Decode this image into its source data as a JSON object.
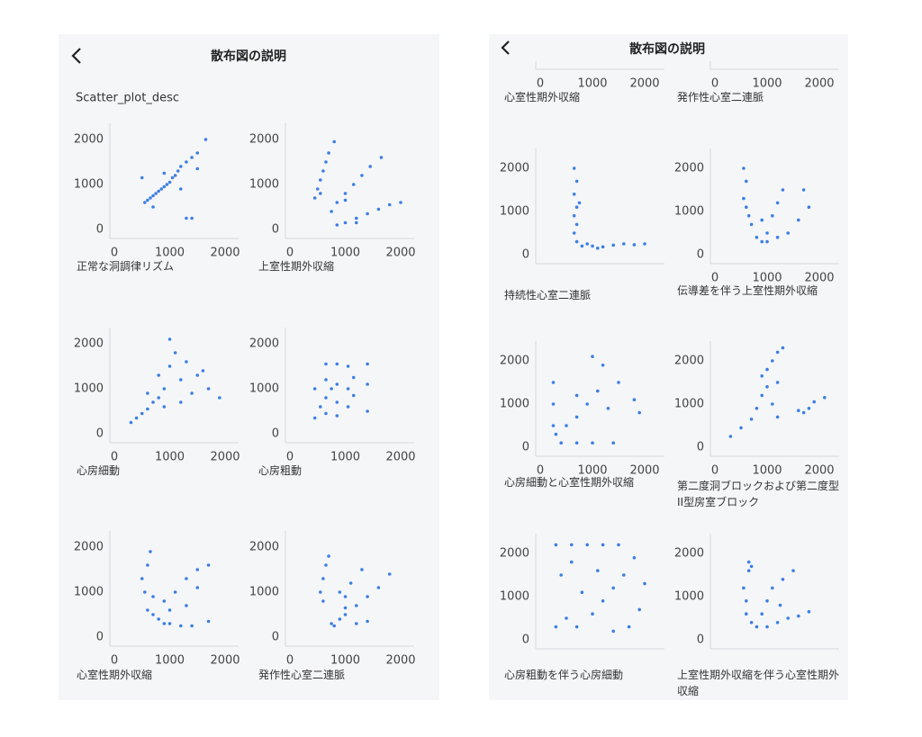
{
  "color": "#3d7fe3",
  "screens": [
    {
      "title": "散布図の説明",
      "subtitle": "Scatter_plot_desc",
      "plots": [
        {
          "type": "scatter",
          "label": "正常な洞調律リズム",
          "xticks": [
            0,
            1000,
            2000
          ],
          "yticks": [
            0,
            1000,
            2000
          ],
          "x": [
            550,
            600,
            650,
            700,
            750,
            800,
            850,
            900,
            950,
            1000,
            1050,
            1100,
            1150,
            1200,
            1300,
            1400,
            1500,
            1650,
            1300,
            1400,
            500,
            900,
            1200,
            1500,
            700
          ],
          "y": [
            600,
            650,
            700,
            750,
            800,
            850,
            900,
            950,
            1000,
            1050,
            1150,
            1200,
            1300,
            1400,
            1500,
            1600,
            1700,
            2000,
            250,
            250,
            1150,
            1250,
            900,
            1350,
            500
          ]
        },
        {
          "type": "scatter",
          "label": "上室性期外収縮",
          "xticks": [
            0,
            1000,
            2000
          ],
          "yticks": [
            0,
            1000,
            2000
          ],
          "x": [
            450,
            500,
            550,
            600,
            650,
            700,
            800,
            550,
            750,
            850,
            1000,
            1150,
            1300,
            1450,
            1650,
            1000,
            850,
            1000,
            1200,
            1400,
            1600,
            1800,
            2000,
            1200
          ],
          "y": [
            700,
            900,
            1100,
            1300,
            1500,
            1700,
            1950,
            800,
            400,
            600,
            800,
            1000,
            1200,
            1400,
            1600,
            650,
            100,
            150,
            250,
            350,
            450,
            550,
            600,
            150
          ]
        },
        {
          "type": "scatter",
          "label": "心房細動",
          "xticks": [
            0,
            1000,
            2000
          ],
          "yticks": [
            0,
            1000,
            2000
          ],
          "x": [
            300,
            400,
            500,
            600,
            700,
            800,
            900,
            1000,
            1100,
            1300,
            1500,
            1700,
            1900,
            1200,
            800,
            1000,
            1400,
            1600,
            900,
            1200,
            600
          ],
          "y": [
            250,
            350,
            450,
            550,
            700,
            800,
            1000,
            2100,
            1800,
            1600,
            1300,
            1000,
            800,
            1200,
            1300,
            1500,
            900,
            1400,
            600,
            700,
            900
          ]
        },
        {
          "type": "scatter",
          "label": "心房粗動",
          "xticks": [
            0,
            1000,
            2000
          ],
          "yticks": [
            0,
            1000,
            2000
          ],
          "x": [
            450,
            450,
            650,
            650,
            650,
            650,
            850,
            850,
            850,
            850,
            1050,
            1050,
            1050,
            1150,
            1150,
            1400,
            1400,
            1400,
            550,
            750
          ],
          "y": [
            350,
            1000,
            1550,
            1200,
            800,
            450,
            1550,
            1100,
            700,
            400,
            1500,
            1000,
            600,
            1250,
            850,
            1550,
            1100,
            500,
            600,
            1000
          ]
        },
        {
          "type": "scatter",
          "label": "心室性期外収縮",
          "xticks": [
            0,
            1000,
            2000
          ],
          "yticks": [
            0,
            1000,
            2000
          ],
          "x": [
            500,
            600,
            650,
            550,
            600,
            700,
            800,
            900,
            1000,
            1200,
            1400,
            1700,
            900,
            1100,
            1300,
            1500,
            1700,
            1000,
            1300,
            1500,
            700
          ],
          "y": [
            1300,
            1600,
            1900,
            1000,
            600,
            500,
            400,
            300,
            300,
            250,
            250,
            350,
            800,
            1000,
            1300,
            1500,
            1600,
            600,
            700,
            1100,
            900
          ]
        },
        {
          "type": "scatter",
          "label": "発作性心室二連脈",
          "xticks": [
            0,
            1000,
            2000
          ],
          "yticks": [
            0,
            1000,
            2000
          ],
          "x": [
            550,
            600,
            650,
            700,
            600,
            750,
            900,
            1000,
            1200,
            1400,
            1600,
            1800,
            1000,
            1100,
            1300,
            1200,
            1400,
            900,
            800,
            1000
          ],
          "y": [
            1000,
            1300,
            1600,
            1800,
            800,
            300,
            400,
            500,
            700,
            900,
            1100,
            1400,
            900,
            1200,
            1500,
            300,
            350,
            1000,
            250,
            650
          ]
        }
      ]
    },
    {
      "title": "散布図の説明",
      "plots": [
        {
          "type": "scatter",
          "label": "心室性期外収縮",
          "xticks": [
            0,
            1000,
            2000
          ]
        },
        {
          "type": "scatter",
          "label": "発作性心室二連脈",
          "xticks": [
            0,
            1000,
            2000
          ]
        },
        {
          "type": "scatter",
          "label": "持続性心室二連脈",
          "yticks": [
            0,
            1000,
            2000
          ],
          "x": [
            650,
            700,
            650,
            700,
            650,
            700,
            650,
            700,
            800,
            1000,
            1200,
            1400,
            1600,
            1800,
            2000,
            900,
            1100,
            750
          ],
          "y": [
            2000,
            1700,
            1400,
            1100,
            900,
            700,
            500,
            300,
            200,
            200,
            180,
            220,
            250,
            230,
            250,
            250,
            150,
            1200
          ]
        },
        {
          "type": "scatter",
          "label": "伝導差を伴う上室性期外収縮",
          "xticks": [
            0,
            1000,
            2000
          ],
          "yticks": [
            0,
            1000,
            2000
          ],
          "x": [
            550,
            600,
            550,
            600,
            650,
            700,
            800,
            900,
            1000,
            1100,
            1200,
            1300,
            1200,
            1400,
            1600,
            1800,
            1700,
            900,
            1000
          ],
          "y": [
            2000,
            1700,
            1300,
            1100,
            900,
            700,
            400,
            300,
            500,
            900,
            1200,
            1500,
            400,
            500,
            800,
            1100,
            1500,
            800,
            300
          ]
        },
        {
          "type": "scatter",
          "label": "心房細動と心室性期外収縮",
          "xticks": [
            0,
            1000,
            2000
          ],
          "yticks": [
            0,
            1000,
            2000
          ],
          "x": [
            250,
            250,
            250,
            400,
            700,
            1000,
            1400,
            300,
            500,
            700,
            900,
            1000,
            1200,
            1500,
            1800,
            1900,
            1100,
            1300,
            700
          ],
          "y": [
            1500,
            1000,
            500,
            100,
            100,
            100,
            100,
            300,
            500,
            700,
            1000,
            2100,
            1900,
            1500,
            1100,
            800,
            1300,
            900,
            1200
          ]
        },
        {
          "type": "scatter",
          "label": "第二度洞ブロックおよび第二度型II型房室ブロック",
          "xticks": [
            0,
            1000,
            2000
          ],
          "yticks": [
            0,
            1000,
            2000
          ],
          "x": [
            900,
            1000,
            1100,
            1200,
            1300,
            300,
            500,
            700,
            800,
            900,
            1000,
            1200,
            1100,
            1200,
            1600,
            1800,
            1900,
            2100,
            1700
          ],
          "y": [
            1650,
            1800,
            2000,
            2200,
            2300,
            250,
            450,
            650,
            900,
            1200,
            1400,
            1500,
            1000,
            700,
            850,
            900,
            1050,
            1150,
            800
          ]
        },
        {
          "type": "scatter",
          "label": "心房粗動を伴う心房細動",
          "yticks": [
            0,
            1000,
            2000
          ],
          "x": [
            300,
            500,
            400,
            300,
            600,
            900,
            1200,
            1500,
            1800,
            2000,
            1900,
            1700,
            1400,
            1000,
            800,
            1100,
            1400,
            600,
            1600,
            700,
            1200
          ],
          "y": [
            300,
            500,
            1500,
            2200,
            2200,
            2200,
            2200,
            2200,
            1900,
            1300,
            700,
            300,
            200,
            600,
            1100,
            1600,
            1200,
            1800,
            1500,
            300,
            900
          ]
        },
        {
          "type": "scatter",
          "label": "上室性期外収縮を伴う心室性期外収縮",
          "yticks": [
            0,
            1000,
            2000
          ],
          "x": [
            650,
            700,
            550,
            600,
            600,
            700,
            800,
            1000,
            1200,
            1400,
            1600,
            1800,
            1000,
            1100,
            1300,
            1500,
            900,
            1250,
            650
          ],
          "y": [
            1800,
            1700,
            1200,
            900,
            600,
            400,
            300,
            300,
            400,
            500,
            550,
            650,
            900,
            1200,
            1400,
            1600,
            600,
            800,
            1600
          ]
        }
      ]
    }
  ]
}
